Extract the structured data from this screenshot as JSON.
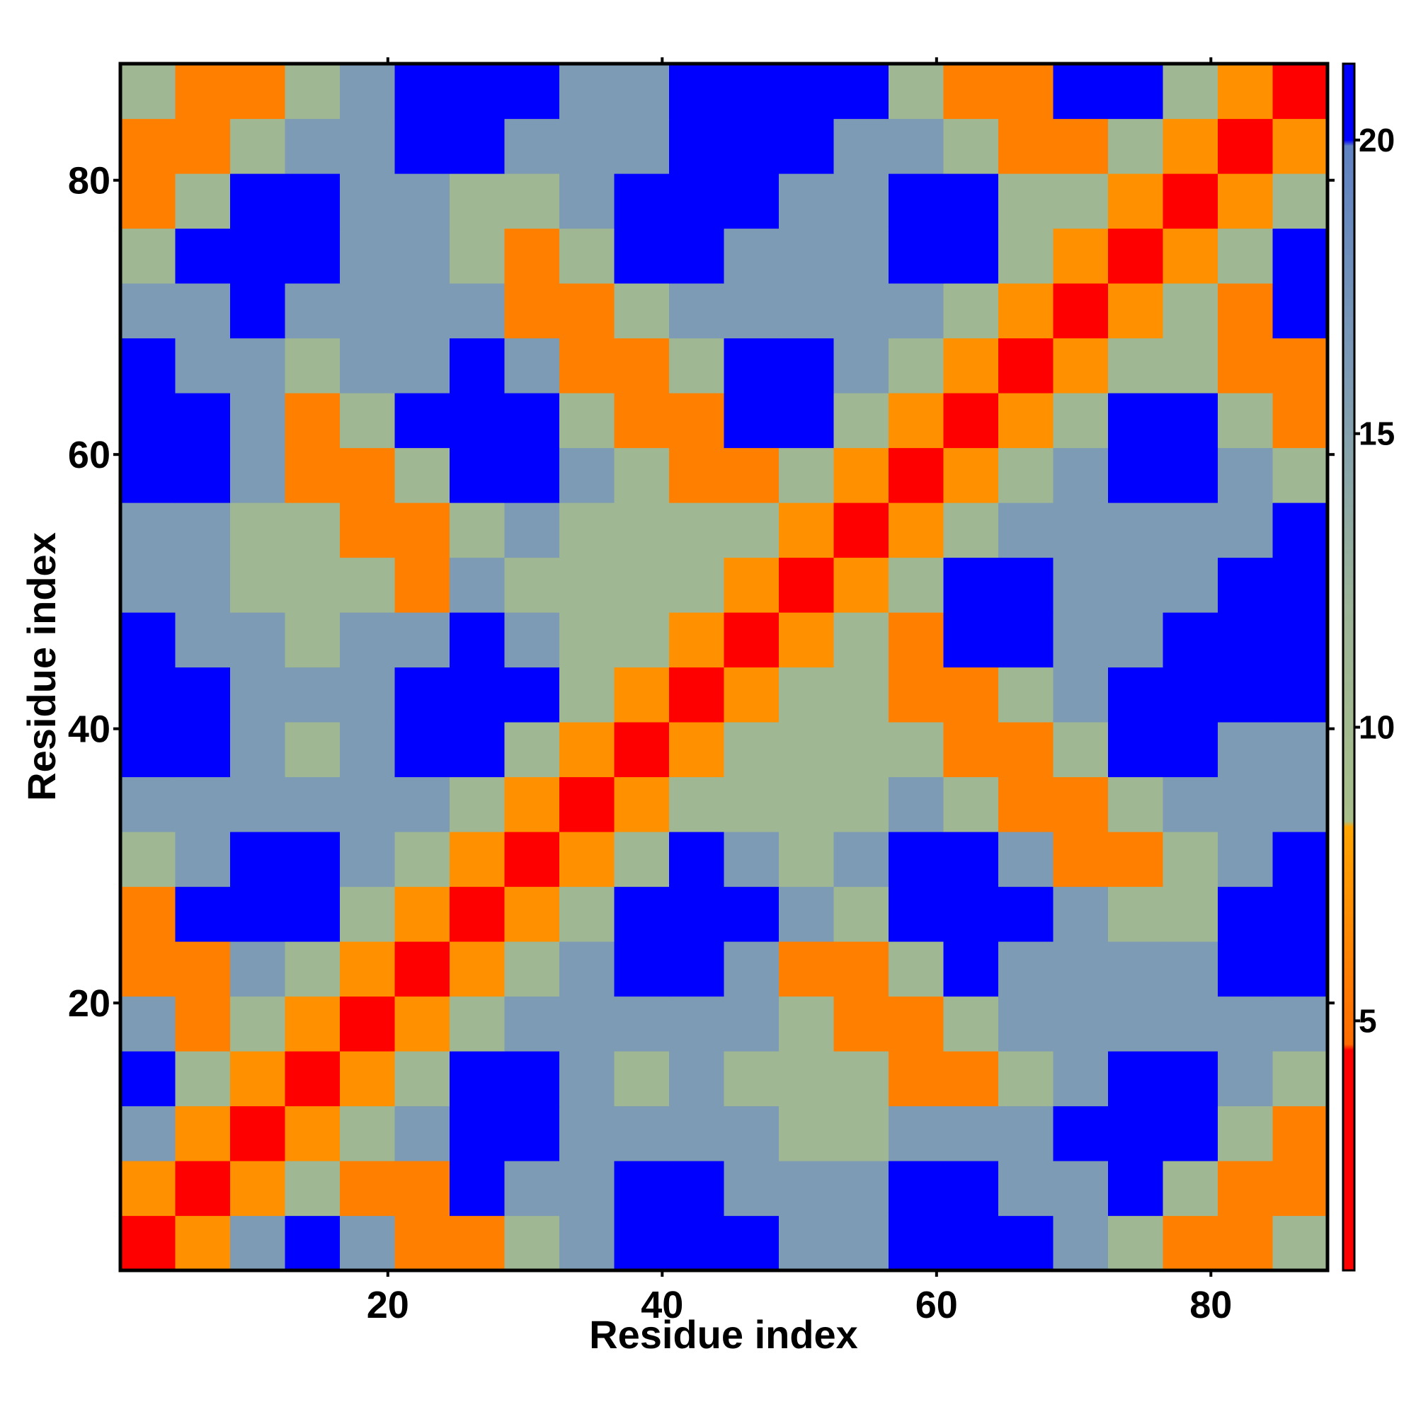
{
  "chart_data": {
    "type": "heatmap",
    "xlabel": "Residue index",
    "ylabel": "Residue index",
    "xlim": [
      0.5,
      88.5
    ],
    "ylim": [
      0.5,
      88.5
    ],
    "xticks": [
      20,
      40,
      60,
      80
    ],
    "yticks": [
      20,
      40,
      60,
      80
    ],
    "xbins": [
      0.5,
      4.5,
      8.5,
      12.5,
      16.5,
      20.5,
      24.5,
      28.5,
      32.5,
      36.5,
      40.5,
      44.5,
      48.5,
      52.5,
      56.5,
      60.5,
      64.5,
      68.5,
      72.5,
      76.5,
      80.5,
      84.5,
      88.5
    ],
    "ybins": [
      0.5,
      4.5,
      8.5,
      12.5,
      16.5,
      20.5,
      24.5,
      28.5,
      32.5,
      36.5,
      40.5,
      44.5,
      48.5,
      52.5,
      56.5,
      60.5,
      64.5,
      68.5,
      72.5,
      76.5,
      80.5,
      84.5,
      88.5
    ],
    "z": [
      [
        4,
        7,
        16,
        21,
        16,
        6,
        6,
        11,
        16,
        21,
        21,
        21,
        16,
        16,
        21,
        21,
        21,
        16,
        11,
        6,
        6,
        11
      ],
      [
        7,
        4,
        7,
        11,
        6,
        6,
        21,
        16,
        16,
        21,
        21,
        16,
        16,
        16,
        21,
        21,
        16,
        16,
        21,
        11,
        6,
        6
      ],
      [
        16,
        7,
        4,
        7,
        11,
        16,
        21,
        21,
        16,
        16,
        16,
        16,
        11,
        11,
        16,
        16,
        16,
        21,
        21,
        21,
        11,
        6
      ],
      [
        21,
        11,
        7,
        4,
        7,
        11,
        21,
        21,
        16,
        11,
        16,
        11,
        11,
        11,
        6,
        6,
        11,
        16,
        21,
        21,
        16,
        11
      ],
      [
        16,
        6,
        11,
        7,
        4,
        7,
        11,
        16,
        16,
        16,
        16,
        16,
        11,
        6,
        6,
        11,
        16,
        16,
        16,
        16,
        16,
        16
      ],
      [
        6,
        6,
        16,
        11,
        7,
        4,
        7,
        11,
        16,
        21,
        21,
        16,
        6,
        6,
        11,
        21,
        16,
        16,
        16,
        16,
        21,
        21
      ],
      [
        6,
        21,
        21,
        21,
        11,
        7,
        4,
        7,
        11,
        21,
        21,
        21,
        16,
        11,
        21,
        21,
        21,
        16,
        11,
        11,
        21,
        21
      ],
      [
        11,
        16,
        21,
        21,
        16,
        11,
        7,
        4,
        7,
        11,
        21,
        16,
        11,
        16,
        21,
        21,
        16,
        6,
        6,
        11,
        16,
        21
      ],
      [
        16,
        16,
        16,
        16,
        16,
        16,
        11,
        7,
        4,
        7,
        11,
        11,
        11,
        11,
        16,
        11,
        6,
        6,
        11,
        16,
        16,
        16
      ],
      [
        21,
        21,
        16,
        11,
        16,
        21,
        21,
        11,
        7,
        4,
        7,
        11,
        11,
        11,
        11,
        6,
        6,
        11,
        21,
        21,
        16,
        16
      ],
      [
        21,
        21,
        16,
        16,
        16,
        21,
        21,
        21,
        11,
        7,
        4,
        7,
        11,
        11,
        6,
        6,
        11,
        16,
        21,
        21,
        21,
        21
      ],
      [
        21,
        16,
        16,
        11,
        16,
        16,
        21,
        16,
        11,
        11,
        7,
        4,
        7,
        11,
        6,
        21,
        21,
        16,
        16,
        21,
        21,
        21
      ],
      [
        16,
        16,
        11,
        11,
        11,
        6,
        16,
        11,
        11,
        11,
        11,
        7,
        4,
        7,
        11,
        21,
        21,
        16,
        16,
        16,
        21,
        21
      ],
      [
        16,
        16,
        11,
        11,
        6,
        6,
        11,
        16,
        11,
        11,
        11,
        11,
        7,
        4,
        7,
        11,
        16,
        16,
        16,
        16,
        16,
        21
      ],
      [
        21,
        21,
        16,
        6,
        6,
        11,
        21,
        21,
        16,
        11,
        6,
        6,
        11,
        7,
        4,
        7,
        11,
        16,
        21,
        21,
        16,
        11
      ],
      [
        21,
        21,
        16,
        6,
        11,
        21,
        21,
        21,
        11,
        6,
        6,
        21,
        21,
        11,
        7,
        4,
        7,
        11,
        21,
        21,
        11,
        6
      ],
      [
        21,
        16,
        16,
        11,
        16,
        16,
        21,
        16,
        6,
        6,
        11,
        21,
        21,
        16,
        11,
        7,
        4,
        7,
        11,
        11,
        6,
        6
      ],
      [
        16,
        16,
        21,
        16,
        16,
        16,
        16,
        6,
        6,
        11,
        16,
        16,
        16,
        16,
        16,
        11,
        7,
        4,
        7,
        11,
        6,
        21
      ],
      [
        11,
        21,
        21,
        21,
        16,
        16,
        11,
        6,
        11,
        21,
        21,
        16,
        16,
        16,
        21,
        21,
        11,
        7,
        4,
        7,
        11,
        21
      ],
      [
        6,
        11,
        21,
        21,
        16,
        16,
        11,
        11,
        16,
        21,
        21,
        21,
        16,
        16,
        21,
        21,
        11,
        11,
        7,
        4,
        7,
        11
      ],
      [
        6,
        6,
        11,
        16,
        16,
        21,
        21,
        16,
        16,
        16,
        21,
        21,
        21,
        16,
        16,
        11,
        6,
        6,
        11,
        7,
        4,
        7
      ],
      [
        11,
        6,
        6,
        11,
        16,
        21,
        21,
        21,
        16,
        16,
        21,
        21,
        21,
        21,
        11,
        6,
        6,
        21,
        21,
        11,
        7,
        4
      ]
    ],
    "zlim": [
      0.75,
      21.3
    ],
    "colorbar_ticks": [
      5,
      10,
      15,
      20
    ],
    "colorscale": [
      [
        0.75,
        "#ff0000"
      ],
      [
        4.5,
        "#ff0000"
      ],
      [
        4.6,
        "#ff6a00"
      ],
      [
        8.3,
        "#ffa500"
      ],
      [
        8.4,
        "#a8bf8a"
      ],
      [
        12,
        "#9cb497"
      ],
      [
        16,
        "#7d9bb5"
      ],
      [
        19.9,
        "#5f82c2"
      ],
      [
        20,
        "#0000ff"
      ],
      [
        21.3,
        "#0000ff"
      ]
    ]
  }
}
